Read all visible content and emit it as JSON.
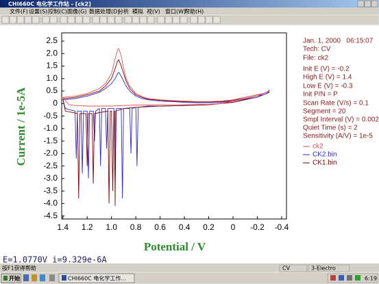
{
  "window": {
    "title": "CHI660C 电化学工作站 - [ck2]"
  },
  "menu": [
    "文件(F)",
    "设置(S)",
    "控制(C)",
    "图像(G)",
    "数据处理(D)",
    "分析",
    "模拟",
    "视(V)",
    "窗口(W)",
    "帮助(H)"
  ],
  "chart_data": {
    "type": "line",
    "xlabel": "Potential / V",
    "ylabel": "Current / 1e-5A",
    "annotations": [
      "Jan. 1, 2000   06:15:07",
      "Tech: CV",
      "File: ck2",
      "Init E (V) = -0.2",
      "High E (V) = 1.4",
      "Low E (V) = -0.3",
      "Init P/N = P",
      "Scan Rate (V/s) = 0.1",
      "Segment = 20",
      "Smpl Interval (V) = 0.002",
      "Quiet Time (s) = 2",
      "Sensitivity (A/V) = 1e-5"
    ],
    "xlim": [
      1.41,
      -0.44
    ],
    "ylim": [
      -4.62,
      2.83
    ],
    "xticks": [
      1.4,
      1.2,
      {
        "value": 1,
        "label": "1.0"
      },
      0.8,
      0.6,
      0.4,
      0.2,
      0,
      -0.2,
      -0.4
    ],
    "yticks": [
      2.5,
      {
        "value": 2,
        "label": "2.0"
      },
      1.5,
      {
        "value": 1,
        "label": "1.0"
      },
      0.5,
      0,
      -0.5,
      {
        "value": -1,
        "label": "-1.0"
      },
      -1.5,
      {
        "value": -2,
        "label": "-2.0"
      },
      -2.5,
      {
        "value": -3,
        "label": "-3.0"
      },
      -3.5,
      {
        "value": -4,
        "label": "-4.0"
      },
      -4.5
    ],
    "series": [
      {
        "name": "CK2.bin",
        "color": "#2a2ad0",
        "x": [
          -0.3,
          -0.28,
          -0.25,
          -0.2,
          -0.15,
          -0.1,
          0,
          0.1,
          0.2,
          0.3,
          0.4,
          0.5,
          0.6,
          0.7,
          0.75,
          0.8,
          0.85,
          0.88,
          0.9,
          0.92,
          0.94,
          0.95,
          0.97,
          1.0,
          1.05,
          1.1,
          1.2,
          1.3,
          1.4,
          1.38,
          1.3,
          1.29,
          1.28,
          1.25,
          1.24,
          1.23,
          1.2,
          1.19,
          1.18,
          1.15,
          1.14,
          1.13,
          1.1,
          1.09,
          1.08,
          1.05,
          1.04,
          1.03,
          1.0,
          0.98,
          0.97,
          0.96,
          0.92,
          0.91,
          0.9,
          0.85,
          0.84,
          0.83,
          0.8,
          0.79,
          0.78,
          0.7,
          0.6,
          0.4,
          0.2,
          0,
          -0.2,
          -0.3
        ],
        "values": [
          0.5,
          0.4,
          0.35,
          0.3,
          0.25,
          0.2,
          0.1,
          0.05,
          0.03,
          0.03,
          0.05,
          0.08,
          0.1,
          0.15,
          0.2,
          0.3,
          0.5,
          0.7,
          0.9,
          1.1,
          1.25,
          1.2,
          1.0,
          0.8,
          0.6,
          0.45,
          0.3,
          0.2,
          0.15,
          -0.2,
          -0.3,
          -2.2,
          -0.3,
          -0.3,
          -2.8,
          -0.3,
          -0.3,
          -3.0,
          -0.3,
          -0.3,
          -1.5,
          -0.3,
          -0.2,
          -2.5,
          -0.2,
          -0.2,
          -1.8,
          -0.2,
          -0.2,
          -0.2,
          -3.3,
          -0.2,
          -0.2,
          -3.8,
          -0.2,
          -0.2,
          -2.0,
          -0.2,
          -0.15,
          -2.5,
          -0.15,
          -0.1,
          -0.1,
          -0.08,
          -0.05,
          0.05,
          0.25,
          0.45
        ]
      },
      {
        "name": "CK1.bin",
        "color": "#800000",
        "x": [
          -0.3,
          -0.28,
          -0.25,
          -0.2,
          -0.15,
          -0.1,
          0,
          0.1,
          0.2,
          0.3,
          0.4,
          0.5,
          0.6,
          0.7,
          0.75,
          0.8,
          0.85,
          0.88,
          0.9,
          0.92,
          0.94,
          0.95,
          0.97,
          1.0,
          1.05,
          1.1,
          1.2,
          1.3,
          1.4,
          1.38,
          1.28,
          1.27,
          1.26,
          1.21,
          1.2,
          1.19,
          1.16,
          1.15,
          1.14,
          1.03,
          1.02,
          1.01,
          1.0,
          0.99,
          0.98,
          0.975,
          0.97,
          0.965,
          0.9,
          0.8,
          0.6,
          0.4,
          0.2,
          0,
          -0.2,
          -0.3
        ],
        "values": [
          0.55,
          0.45,
          0.4,
          0.35,
          0.3,
          0.25,
          0.12,
          0.08,
          0.06,
          0.06,
          0.08,
          0.1,
          0.13,
          0.18,
          0.25,
          0.35,
          0.6,
          0.9,
          1.2,
          1.5,
          1.75,
          1.7,
          1.4,
          1.0,
          0.7,
          0.5,
          0.35,
          0.25,
          0.2,
          -0.3,
          -0.4,
          -3.8,
          -0.4,
          -0.4,
          -2.5,
          -0.4,
          -0.4,
          -3.2,
          -0.4,
          -0.3,
          -4.0,
          -0.3,
          -0.3,
          -3.5,
          -0.3,
          -0.3,
          -4.1,
          -0.3,
          -0.2,
          -0.15,
          -0.1,
          -0.08,
          -0.05,
          0.05,
          0.3,
          0.5
        ]
      },
      {
        "name": "ck2",
        "color": "#e05050",
        "x": [
          -0.3,
          -0.28,
          -0.25,
          -0.2,
          -0.15,
          -0.1,
          0,
          0.1,
          0.2,
          0.3,
          0.4,
          0.5,
          0.6,
          0.7,
          0.75,
          0.8,
          0.85,
          0.88,
          0.9,
          0.92,
          0.94,
          0.95,
          0.97,
          1.0,
          1.05,
          1.1,
          1.2,
          1.3,
          1.4,
          1.35,
          1.3,
          1.2,
          1.1,
          1.0,
          0.9,
          0.8,
          0.6,
          0.4,
          0.2,
          0.1,
          0,
          -0.1,
          -0.2,
          -0.25,
          -0.3
        ],
        "values": [
          0.55,
          0.45,
          0.4,
          0.35,
          0.3,
          0.25,
          0.15,
          0.1,
          0.08,
          0.08,
          0.1,
          0.12,
          0.15,
          0.2,
          0.28,
          0.4,
          0.7,
          1.0,
          1.4,
          1.9,
          2.2,
          2.15,
          1.8,
          1.2,
          0.8,
          0.6,
          0.4,
          0.3,
          0.25,
          -0.05,
          -0.08,
          -0.1,
          -0.1,
          -0.1,
          -0.08,
          -0.06,
          -0.05,
          -0.05,
          -0.03,
          0.0,
          0.1,
          0.2,
          0.3,
          0.4,
          0.5
        ]
      }
    ]
  },
  "readout": "E=1.0770V   i=9.329e-6A",
  "statusbar": [
    "按F1获得帮助",
    "CV",
    "3-Electro"
  ],
  "taskbar": {
    "start": "开始",
    "task": "CHI660C 电化学工作...",
    "clock": "6:19"
  }
}
